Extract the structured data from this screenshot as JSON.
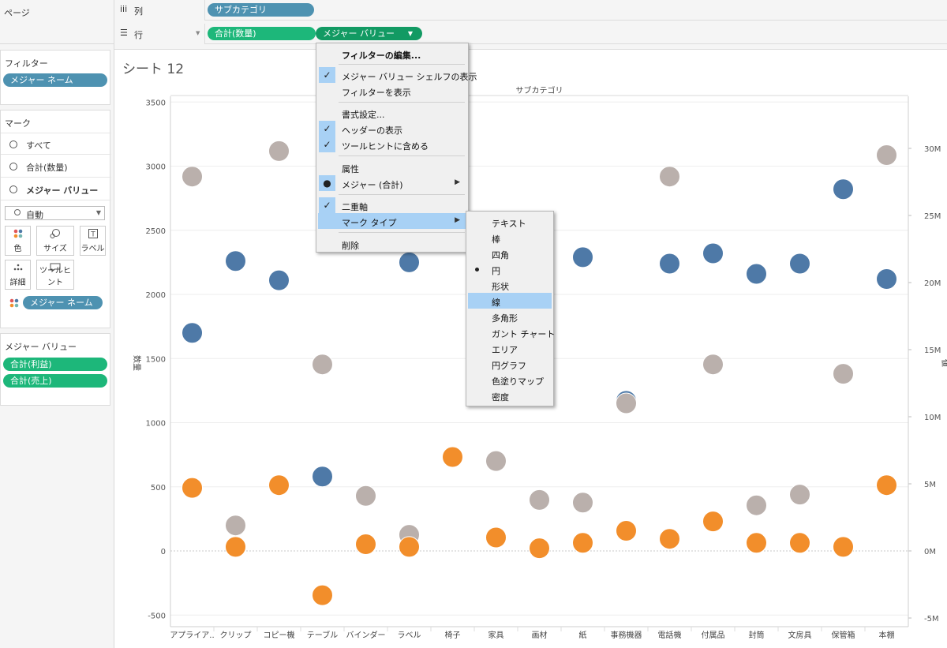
{
  "left": {
    "pages_label": "ページ",
    "filters_label": "フィルター",
    "filter_pill": "メジャー ネーム",
    "marks_label": "マーク",
    "marks_rows": [
      "すべて",
      "合計(数量)",
      "メジャー バリュー"
    ],
    "mark_type": "自動",
    "mark_buttons": {
      "color": "色",
      "size": "サイズ",
      "label": "ラベル",
      "detail": "詳細",
      "tooltip": "ツールヒント"
    },
    "mark_pill": "メジャー ネーム",
    "measure_values_label": "メジャー バリュー",
    "measure_pills": [
      "合計(利益)",
      "合計(売上)"
    ]
  },
  "shelves": {
    "columns_label": "列",
    "columns_pill": "サブカテゴリ",
    "rows_label": "行",
    "rows_pill1": "合計(数量)",
    "rows_pill2": "メジャー バリュー"
  },
  "sheet": {
    "title": "シート 12"
  },
  "context_menu": {
    "items": [
      "フィルターの編集...",
      "メジャー バリュー シェルフの表示",
      "フィルターを表示",
      "書式設定...",
      "ヘッダーの表示",
      "ツールヒントに含める",
      "属性",
      "メジャー (合計)",
      "二重軸",
      "マーク タイプ",
      "削除"
    ]
  },
  "mark_type_menu": {
    "items": [
      "テキスト",
      "棒",
      "四角",
      "円",
      "形状",
      "線",
      "多角形",
      "ガント チャート",
      "エリア",
      "円グラフ",
      "色塗りマップ",
      "密度"
    ],
    "selected": "円",
    "hovered": "線"
  },
  "colors": {
    "quantity": "#4e79a7",
    "profit": "#bab0ac",
    "sales": "#f28e2b",
    "pill_blue": "#4e92b1",
    "pill_green": "#1db77a",
    "highlight": "#a8d1f5"
  },
  "chart_data": {
    "type": "scatter",
    "title": "",
    "xlabel": "サブカテゴリ",
    "ylabel": "数量",
    "y2label": "値",
    "ylim": [
      -600,
      3550
    ],
    "y2lim": [
      -6000000,
      35500000
    ],
    "y_ticks": [
      -500,
      0,
      500,
      1000,
      1500,
      2000,
      2500,
      3000,
      3500
    ],
    "y2_ticks": [
      -5000000,
      0,
      5000000,
      10000000,
      15000000,
      20000000,
      25000000,
      30000000
    ],
    "y2_tick_labels": [
      "-5M",
      "0M",
      "5M",
      "10M",
      "15M",
      "20M",
      "25M",
      "30M"
    ],
    "categories": [
      "アプライア..",
      "クリップ",
      "コピー機",
      "テーブル",
      "バインダー",
      "ラベル",
      "椅子",
      "家具",
      "画材",
      "紙",
      "事務機器",
      "電話機",
      "付属品",
      "封筒",
      "文房具",
      "保管箱",
      "本棚"
    ],
    "series": [
      {
        "name": "合計(数量)",
        "axis": "left",
        "values": [
          1700,
          2260,
          2110,
          580,
          null,
          2250,
          null,
          null,
          null,
          2290,
          1170,
          2240,
          2320,
          2160,
          2240,
          2820,
          2120
        ]
      },
      {
        "name": "合計(利益)",
        "axis": "right",
        "values": [
          27900000,
          1900000,
          29800000,
          13900000,
          4100000,
          1200000,
          null,
          6700000,
          3800000,
          3600000,
          11000000,
          27900000,
          13900000,
          3400000,
          4200000,
          13200000,
          29500000
        ]
      },
      {
        "name": "合計(売上)",
        "axis": "right",
        "values": [
          4700000,
          300000,
          4900000,
          -3300000,
          500000,
          300000,
          7000000,
          1000000,
          200000,
          600000,
          1500000,
          900000,
          2200000,
          600000,
          600000,
          300000,
          4900000
        ]
      }
    ]
  }
}
